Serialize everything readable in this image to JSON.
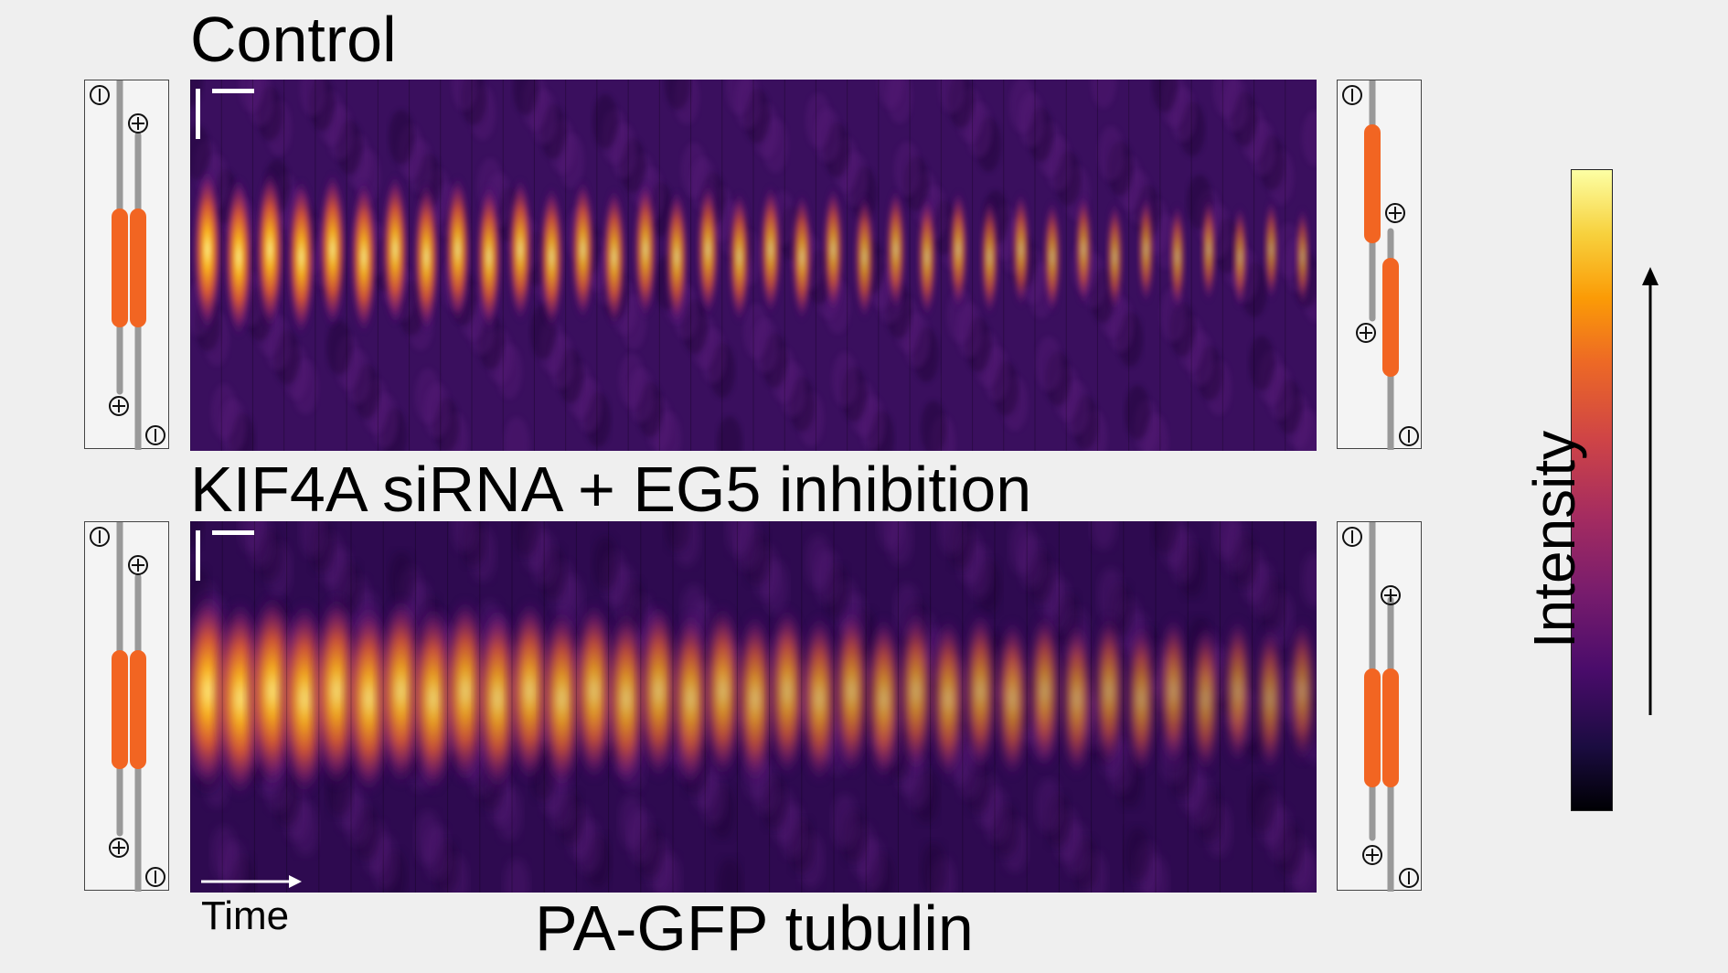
{
  "panels": {
    "top": {
      "title": "Control"
    },
    "bottom": {
      "title": "KIF4A siRNA + EG5 inhibition"
    }
  },
  "x_label": "PA-GFP tubulin",
  "time_label": "Time",
  "colorbar": {
    "label": "Intensity",
    "colormap": "inferno"
  },
  "schematics": {
    "minus_symbol": "minus-end-icon",
    "plus_symbol": "plus-end-icon",
    "microtubule_color": "#999999",
    "overlap_color": "#f26522"
  },
  "colors": {
    "background": "#efefef",
    "scalebar": "#ffffff"
  }
}
